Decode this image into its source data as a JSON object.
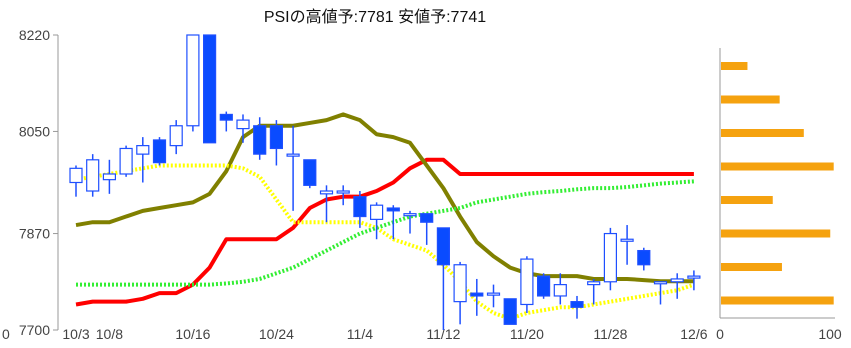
{
  "chart_data": [
    {
      "type": "candlestick",
      "title": "PSIの高値予:7781 安値予:7741",
      "ylim": [
        7700,
        8220
      ],
      "y_ticks": [
        {
          "label": "8220",
          "value": 8220
        },
        {
          "label": "8050",
          "value": 8050
        },
        {
          "label": "7870",
          "value": 7870
        },
        {
          "label": "7700",
          "value": 7700
        }
      ],
      "y_extra_label": "0",
      "x_ticks": [
        {
          "label": "10/3",
          "index": 0
        },
        {
          "label": "10/8",
          "index": 2
        },
        {
          "label": "10/16",
          "index": 7
        },
        {
          "label": "10/24",
          "index": 12
        },
        {
          "label": "11/4",
          "index": 17
        },
        {
          "label": "11/12",
          "index": 22
        },
        {
          "label": "11/20",
          "index": 27
        },
        {
          "label": "11/28",
          "index": 32
        },
        {
          "label": "12/6",
          "index": 37
        }
      ],
      "candles": [
        {
          "o": 7960,
          "h": 7990,
          "l": 7935,
          "c": 7985
        },
        {
          "o": 7945,
          "h": 8010,
          "l": 7935,
          "c": 8000
        },
        {
          "o": 7965,
          "h": 8000,
          "l": 7940,
          "c": 7975
        },
        {
          "o": 7975,
          "h": 8025,
          "l": 7970,
          "c": 8020
        },
        {
          "o": 8010,
          "h": 8040,
          "l": 7960,
          "c": 8025
        },
        {
          "o": 8035,
          "h": 8040,
          "l": 7990,
          "c": 7995
        },
        {
          "o": 8025,
          "h": 8070,
          "l": 8010,
          "c": 8060
        },
        {
          "o": 8060,
          "h": 8220,
          "l": 8050,
          "c": 8220
        },
        {
          "o": 8220,
          "h": 8220,
          "l": 8030,
          "c": 8030
        },
        {
          "o": 8080,
          "h": 8085,
          "l": 8050,
          "c": 8070
        },
        {
          "o": 8055,
          "h": 8080,
          "l": 8030,
          "c": 8070
        },
        {
          "o": 8060,
          "h": 8075,
          "l": 8000,
          "c": 8010
        },
        {
          "o": 8060,
          "h": 8070,
          "l": 7990,
          "c": 8020
        },
        {
          "o": 8010,
          "h": 8060,
          "l": 7910,
          "c": 8010
        },
        {
          "o": 8000,
          "h": 8000,
          "l": 7950,
          "c": 7955
        },
        {
          "o": 7940,
          "h": 7955,
          "l": 7890,
          "c": 7945
        },
        {
          "o": 7945,
          "h": 7955,
          "l": 7920,
          "c": 7945
        },
        {
          "o": 7935,
          "h": 7945,
          "l": 7880,
          "c": 7900
        },
        {
          "o": 7895,
          "h": 7925,
          "l": 7860,
          "c": 7920
        },
        {
          "o": 7915,
          "h": 7920,
          "l": 7860,
          "c": 7910
        },
        {
          "o": 7905,
          "h": 7910,
          "l": 7870,
          "c": 7905
        },
        {
          "o": 7905,
          "h": 7905,
          "l": 7850,
          "c": 7890
        },
        {
          "o": 7880,
          "h": 7880,
          "l": 7700,
          "c": 7815
        },
        {
          "o": 7750,
          "h": 7820,
          "l": 7710,
          "c": 7815
        },
        {
          "o": 7765,
          "h": 7790,
          "l": 7725,
          "c": 7760
        },
        {
          "o": 7765,
          "h": 7780,
          "l": 7740,
          "c": 7765
        },
        {
          "o": 7755,
          "h": 7755,
          "l": 7710,
          "c": 7710
        },
        {
          "o": 7745,
          "h": 7830,
          "l": 7730,
          "c": 7825
        },
        {
          "o": 7795,
          "h": 7800,
          "l": 7755,
          "c": 7760
        },
        {
          "o": 7760,
          "h": 7800,
          "l": 7745,
          "c": 7780
        },
        {
          "o": 7750,
          "h": 7760,
          "l": 7720,
          "c": 7740
        },
        {
          "o": 7780,
          "h": 7790,
          "l": 7745,
          "c": 7785
        },
        {
          "o": 7785,
          "h": 7880,
          "l": 7770,
          "c": 7870
        },
        {
          "o": 7860,
          "h": 7885,
          "l": 7815,
          "c": 7860
        },
        {
          "o": 7840,
          "h": 7845,
          "l": 7805,
          "c": 7815
        },
        {
          "o": 7785,
          "h": 7785,
          "l": 7745,
          "c": 7785
        },
        {
          "o": 7785,
          "h": 7800,
          "l": 7755,
          "c": 7790
        },
        {
          "o": 7795,
          "h": 7805,
          "l": 7770,
          "c": 7795
        }
      ],
      "series": [
        {
          "color": "#ff0000",
          "values": [
            7745,
            7750,
            7750,
            7750,
            7755,
            7765,
            7765,
            7780,
            7810,
            7860,
            7860,
            7860,
            7860,
            7880,
            7915,
            7930,
            7935,
            7935,
            7945,
            7960,
            7985,
            8000,
            8000,
            7975,
            7975,
            7975,
            7975,
            7975,
            7975,
            7975,
            7975,
            7975,
            7975,
            7975,
            7975,
            7975,
            7975,
            7975
          ]
        },
        {
          "color": "#808000",
          "values": [
            7885,
            7890,
            7890,
            7900,
            7910,
            7915,
            7920,
            7925,
            7940,
            7980,
            8040,
            8060,
            8060,
            8060,
            8065,
            8070,
            8080,
            8070,
            8045,
            8040,
            8030,
            7990,
            7950,
            7900,
            7855,
            7830,
            7810,
            7800,
            7795,
            7795,
            7795,
            7790,
            7790,
            7790,
            7788,
            7786,
            7786,
            7786
          ]
        },
        {
          "color": "#ffff00",
          "dash": true,
          "values": [
            7965,
            7970,
            7975,
            7980,
            7985,
            7990,
            7990,
            7990,
            7990,
            7990,
            7985,
            7970,
            7930,
            7890,
            7890,
            7890,
            7890,
            7890,
            7880,
            7860,
            7850,
            7840,
            7815,
            7785,
            7750,
            7730,
            7720,
            7730,
            7735,
            7740,
            7740,
            7745,
            7750,
            7755,
            7760,
            7765,
            7770,
            7780
          ]
        },
        {
          "color": "#33ee33",
          "dash": true,
          "values": [
            7780,
            7780,
            7780,
            7780,
            7780,
            7780,
            7780,
            7780,
            7780,
            7782,
            7785,
            7790,
            7800,
            7810,
            7825,
            7840,
            7855,
            7870,
            7880,
            7890,
            7900,
            7905,
            7910,
            7915,
            7925,
            7930,
            7935,
            7940,
            7943,
            7945,
            7948,
            7950,
            7950,
            7952,
            7955,
            7958,
            7960,
            7962
          ]
        }
      ]
    },
    {
      "type": "bar",
      "orientation": "horizontal",
      "xlim": [
        0,
        100
      ],
      "x_ticks": [
        "0",
        "100"
      ],
      "values": [
        23,
        51,
        72,
        98,
        45,
        95,
        53,
        98
      ]
    }
  ]
}
